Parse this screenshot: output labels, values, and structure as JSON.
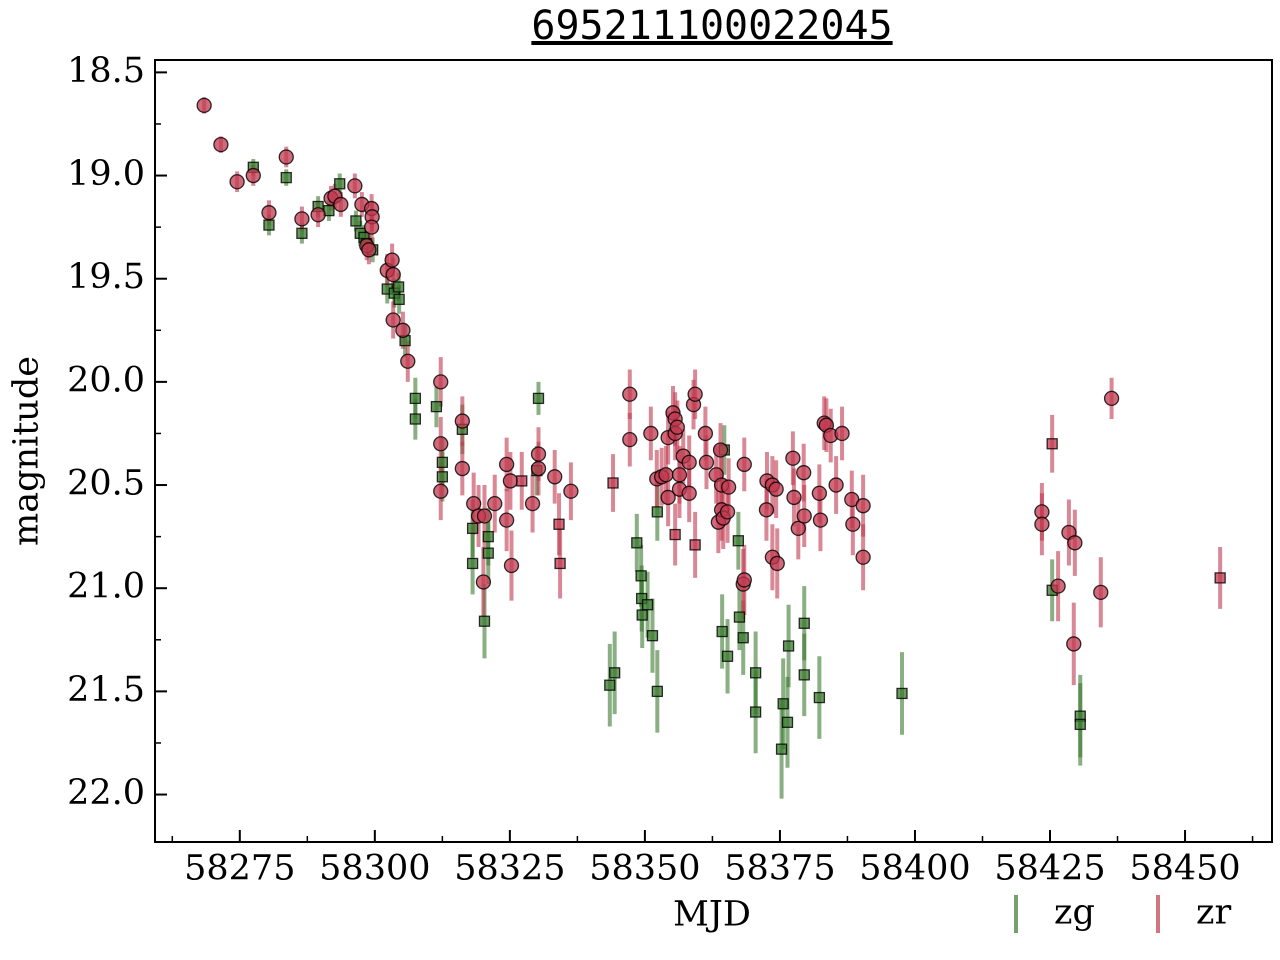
{
  "chart_data": {
    "type": "errorbar-scatter",
    "title": "695211100022045",
    "xlabel": "MJD",
    "ylabel": "magnitude",
    "xlim": [
      58259.3,
      58466.1
    ],
    "ylim": [
      18.44,
      22.23
    ],
    "y_inverted": true,
    "xticks": [
      58275,
      58300,
      58325,
      58350,
      58375,
      58400,
      58425,
      58450
    ],
    "yticks": [
      18.5,
      {
        "value": 19,
        "label": "19.0"
      },
      19.5,
      {
        "value": 20,
        "label": "20.0"
      },
      20.5,
      {
        "value": 21,
        "label": "21.0"
      },
      21.5,
      {
        "value": 22,
        "label": "22.0"
      }
    ],
    "legend": "lower right outside",
    "series": [
      {
        "name": "zg",
        "color": "#3a7a2e",
        "marker": "s",
        "x": [
          58277.5,
          58283.6,
          58280.4,
          58286.5,
          58289.5,
          58291.5,
          58293.5,
          58296.5,
          58297.3,
          58298.0,
          58298.4,
          58299.6,
          58302.3,
          58303.6,
          58304.5,
          58304.4,
          58305.6,
          58307.5,
          58307.5,
          58311.4,
          58312.5,
          58312.5,
          58316.2,
          58318.1,
          58318.1,
          58320.3,
          58321.0,
          58321.0,
          58330.3,
          58330.0,
          58343.5,
          58344.4,
          58348.5,
          58349.3,
          58349.4,
          58349.5,
          58350.5,
          58351.4,
          58352.3,
          58352.3,
          58364.3,
          58364.7,
          58365.3,
          58367.3,
          58367.5,
          58368.2,
          58370.5,
          58370.5,
          58375.3,
          58375.6,
          58376.4,
          58376.6,
          58379.5,
          58379.5,
          58382.3,
          58397.6,
          58425.4,
          58430.6,
          58430.6
        ],
        "values": [
          18.96,
          19.01,
          19.24,
          19.28,
          19.15,
          19.17,
          19.04,
          19.22,
          19.28,
          19.3,
          19.33,
          19.36,
          19.55,
          19.57,
          19.6,
          19.54,
          19.8,
          20.08,
          20.18,
          20.12,
          20.39,
          20.46,
          20.23,
          20.71,
          20.88,
          21.16,
          20.75,
          20.83,
          20.08,
          20.43,
          21.47,
          21.41,
          20.78,
          20.94,
          21.05,
          21.13,
          21.08,
          21.23,
          21.5,
          20.63,
          21.21,
          20.33,
          21.33,
          20.77,
          21.14,
          21.24,
          21.41,
          21.6,
          21.78,
          21.56,
          21.65,
          21.28,
          21.17,
          21.42,
          21.53,
          21.51,
          21.01,
          21.62,
          21.66
        ],
        "errors": [
          0.04,
          0.04,
          0.05,
          0.05,
          0.05,
          0.05,
          0.05,
          0.05,
          0.06,
          0.06,
          0.06,
          0.06,
          0.07,
          0.07,
          0.07,
          0.07,
          0.08,
          0.1,
          0.1,
          0.1,
          0.12,
          0.12,
          0.12,
          0.14,
          0.15,
          0.18,
          0.14,
          0.15,
          0.08,
          0.12,
          0.2,
          0.2,
          0.14,
          0.15,
          0.16,
          0.16,
          0.16,
          0.18,
          0.2,
          0.14,
          0.18,
          0.12,
          0.18,
          0.14,
          0.16,
          0.18,
          0.2,
          0.2,
          0.24,
          0.22,
          0.22,
          0.2,
          0.18,
          0.2,
          0.2,
          0.2,
          0.15,
          0.2,
          0.2
        ]
      },
      {
        "name": "zr",
        "color": "#c0394f",
        "marker": "o",
        "x": [
          58268.4,
          58271.5,
          58274.5,
          58277.5,
          58280.4,
          58283.6,
          58286.5,
          58289.5,
          58291.9,
          58292.6,
          58293.7,
          58296.3,
          58297.6,
          58298.5,
          58298.9,
          58299.4,
          58299.5,
          58299.4,
          58302.3,
          58303.2,
          58303.4,
          58303.4,
          58305.2,
          58306.1,
          58312.2,
          58312.2,
          58312.2,
          58316.2,
          58316.2,
          58318.3,
          58319.2,
          58320.3,
          58320.1,
          58322.2,
          58324.4,
          58324.4,
          58325.1,
          58325.3,
          58329.2,
          58330.3,
          58330.3,
          58333.3,
          58336.3,
          58347.2,
          58347.2,
          58351.1,
          58352.2,
          58353.1,
          58353.9,
          58354.3,
          58354.3,
          58355.2,
          58355.6,
          58355.6,
          58356.0,
          58356.4,
          58356.4,
          58357.1,
          58358.2,
          58358.2,
          58359.0,
          58359.3,
          58361.2,
          58361.4,
          58363.2,
          58363.6,
          58364.0,
          58364.2,
          58364.2,
          58364.5,
          58365.3,
          58365.5,
          58368.2,
          58368.4,
          58368.4,
          58372.5,
          58372.6,
          58373.6,
          58373.6,
          58374.3,
          58374.5,
          58377.4,
          58377.6,
          58378.4,
          58379.4,
          58379.5,
          58382.3,
          58382.5,
          58383.2,
          58383.6,
          58384.4,
          58385.4,
          58386.5,
          58388.3,
          58388.5,
          58390.4,
          58390.4,
          58423.5,
          58423.5,
          58426.5,
          58428.5,
          58429.6,
          58429.4,
          58434.4,
          58436.4,
          58327.2,
          58334.1,
          58334.3,
          58344.1,
          58359.3,
          58355.6,
          58425.4,
          58456.5
        ],
        "values": [
          18.66,
          18.85,
          19.03,
          19.0,
          19.18,
          18.91,
          19.21,
          19.19,
          19.11,
          19.1,
          19.14,
          19.05,
          19.14,
          19.34,
          19.36,
          19.16,
          19.2,
          19.25,
          19.46,
          19.41,
          19.48,
          19.7,
          19.75,
          19.9,
          20.0,
          20.3,
          20.53,
          20.42,
          20.19,
          20.59,
          20.65,
          20.65,
          20.97,
          20.59,
          20.4,
          20.67,
          20.48,
          20.89,
          20.59,
          20.35,
          20.42,
          20.46,
          20.53,
          20.06,
          20.28,
          20.25,
          20.47,
          20.46,
          20.45,
          20.56,
          20.27,
          20.15,
          20.18,
          20.25,
          20.22,
          20.45,
          20.52,
          20.36,
          20.39,
          20.54,
          20.11,
          20.06,
          20.25,
          20.39,
          20.45,
          20.68,
          20.33,
          20.5,
          20.62,
          20.66,
          20.63,
          20.51,
          20.98,
          20.96,
          20.4,
          20.62,
          20.48,
          20.5,
          20.85,
          20.52,
          20.88,
          20.37,
          20.56,
          20.71,
          20.44,
          20.65,
          20.54,
          20.67,
          20.2,
          20.21,
          20.26,
          20.5,
          20.25,
          20.57,
          20.69,
          20.6,
          20.85,
          20.63,
          20.69,
          20.99,
          20.73,
          20.78,
          21.27,
          21.02,
          20.08,
          20.48,
          20.69,
          20.88,
          20.49,
          20.79,
          20.74,
          20.3,
          20.95
        ],
        "errors": [
          0.04,
          0.04,
          0.05,
          0.05,
          0.06,
          0.05,
          0.06,
          0.06,
          0.06,
          0.06,
          0.06,
          0.06,
          0.06,
          0.07,
          0.07,
          0.07,
          0.07,
          0.07,
          0.08,
          0.08,
          0.08,
          0.09,
          0.09,
          0.1,
          0.12,
          0.13,
          0.14,
          0.13,
          0.12,
          0.15,
          0.15,
          0.15,
          0.17,
          0.14,
          0.13,
          0.15,
          0.14,
          0.17,
          0.14,
          0.13,
          0.13,
          0.13,
          0.14,
          0.12,
          0.13,
          0.13,
          0.14,
          0.14,
          0.14,
          0.14,
          0.13,
          0.13,
          0.13,
          0.13,
          0.13,
          0.14,
          0.14,
          0.13,
          0.13,
          0.14,
          0.12,
          0.12,
          0.13,
          0.13,
          0.14,
          0.15,
          0.13,
          0.14,
          0.15,
          0.15,
          0.15,
          0.14,
          0.17,
          0.17,
          0.13,
          0.15,
          0.14,
          0.14,
          0.16,
          0.14,
          0.17,
          0.13,
          0.14,
          0.15,
          0.14,
          0.15,
          0.14,
          0.15,
          0.13,
          0.13,
          0.13,
          0.14,
          0.13,
          0.14,
          0.15,
          0.15,
          0.16,
          0.14,
          0.15,
          0.17,
          0.16,
          0.16,
          0.2,
          0.17,
          0.1,
          0.14,
          0.15,
          0.17,
          0.14,
          0.16,
          0.15,
          0.14,
          0.15
        ],
        "markers": [
          "o",
          "o",
          "o",
          "o",
          "o",
          "o",
          "o",
          "o",
          "o",
          "o",
          "o",
          "o",
          "o",
          "o",
          "o",
          "o",
          "o",
          "o",
          "o",
          "o",
          "o",
          "o",
          "o",
          "o",
          "o",
          "o",
          "o",
          "o",
          "o",
          "o",
          "o",
          "o",
          "o",
          "o",
          "o",
          "o",
          "o",
          "o",
          "o",
          "o",
          "o",
          "o",
          "o",
          "o",
          "o",
          "o",
          "o",
          "o",
          "o",
          "o",
          "o",
          "o",
          "o",
          "o",
          "o",
          "o",
          "o",
          "o",
          "o",
          "o",
          "o",
          "o",
          "o",
          "o",
          "o",
          "o",
          "o",
          "o",
          "o",
          "o",
          "o",
          "o",
          "o",
          "o",
          "o",
          "o",
          "o",
          "o",
          "o",
          "o",
          "o",
          "o",
          "o",
          "o",
          "o",
          "o",
          "o",
          "o",
          "o",
          "o",
          "o",
          "o",
          "o",
          "o",
          "o",
          "o",
          "o",
          "o",
          "o",
          "o",
          "o",
          "o",
          "o",
          "o",
          "o",
          "s",
          "s",
          "s",
          "s",
          "s",
          "s",
          "s",
          "s"
        ]
      }
    ]
  }
}
